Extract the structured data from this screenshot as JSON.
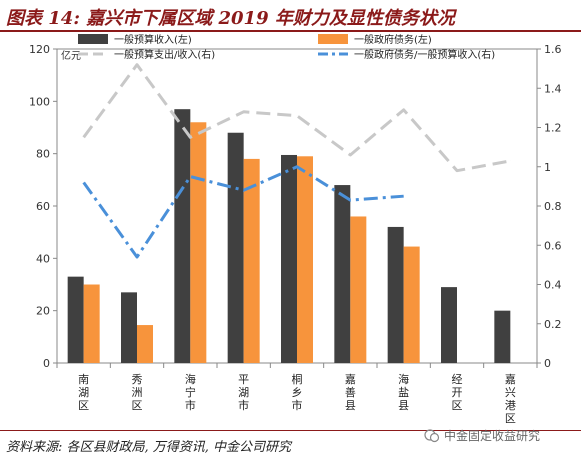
{
  "title": "图表 14: 嘉兴市下属区域 2019 年财力及显性债务状况",
  "source": "资料来源: 各区县财政局, 万得资讯, 中金公司研究",
  "watermark": "中金固定收益研究",
  "colors": {
    "bar1": "#404040",
    "bar2": "#f7943c",
    "line1": "#c8c8c8",
    "line2": "#4a90d9",
    "title": "#8b1a1a"
  },
  "chart_data": {
    "type": "bar",
    "categories": [
      "南湖区",
      "秀洲区",
      "海宁市",
      "平湖市",
      "桐乡市",
      "嘉善县",
      "海盐县",
      "经开区",
      "嘉兴港区"
    ],
    "y_left_unit": "亿元",
    "ylim_left": [
      0,
      120
    ],
    "yticks_left": [
      "0",
      "20",
      "40",
      "60",
      "80",
      "100",
      "120"
    ],
    "ylim_right": [
      0,
      1.6
    ],
    "yticks_right": [
      "0",
      "0.2",
      "0.4",
      "0.6",
      "0.8",
      "1",
      "1.2",
      "1.4",
      "1.6"
    ],
    "series": [
      {
        "name": "一般预算收入(左)",
        "kind": "bar",
        "axis": "left",
        "color": "#404040",
        "values": [
          33,
          27,
          97,
          88,
          79.5,
          68,
          52,
          29,
          20
        ]
      },
      {
        "name": "一般政府债务(左)",
        "kind": "bar",
        "axis": "left",
        "color": "#f7943c",
        "values": [
          30,
          14.5,
          92,
          78,
          79,
          56,
          44.5,
          null,
          null
        ]
      },
      {
        "name": "一般预算支出/收入(右)",
        "kind": "line",
        "style": "dashed",
        "axis": "right",
        "color": "#c8c8c8",
        "values": [
          1.15,
          1.52,
          1.15,
          1.28,
          1.26,
          1.06,
          1.29,
          0.98,
          1.03
        ]
      },
      {
        "name": "一般政府债务/一般预算收入(右)",
        "kind": "line",
        "style": "dashdot",
        "axis": "right",
        "color": "#4a90d9",
        "values": [
          0.92,
          0.54,
          0.95,
          0.88,
          1.0,
          0.83,
          0.85,
          null,
          null
        ]
      }
    ],
    "legend_position": "top"
  }
}
